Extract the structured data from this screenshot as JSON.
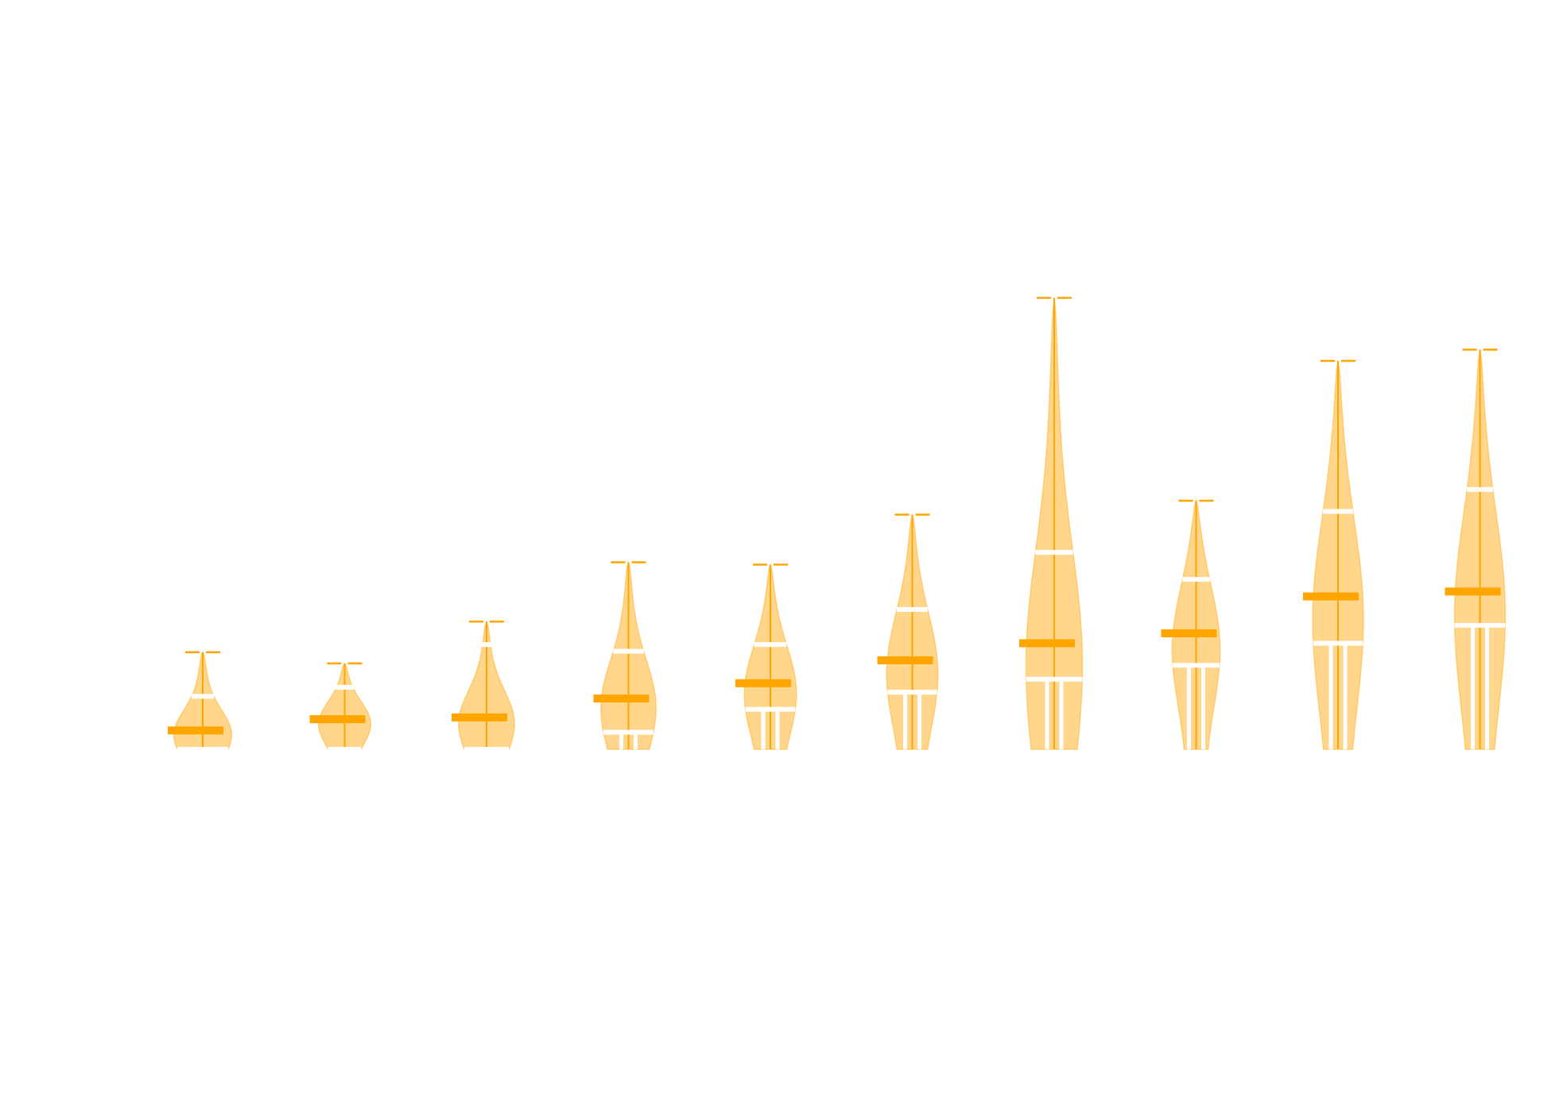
{
  "chart_data": {
    "type": "violin",
    "color": "#ffa500",
    "fill": "#ffd280",
    "box_color": "#ffffff",
    "ylim": [
      0,
      12
    ],
    "violins": [
      {
        "max": 2.16,
        "mean": 0.42,
        "q1": 0,
        "q3": 1.18
      },
      {
        "max": 1.91,
        "mean": 0.67,
        "q1": 0,
        "q3": 1.38
      },
      {
        "max": 2.84,
        "mean": 0.71,
        "q1": 0,
        "q3": 2.33
      },
      {
        "max": 4.16,
        "mean": 1.13,
        "q1": 0.38,
        "q3": 2.18
      },
      {
        "max": 4.11,
        "mean": 1.47,
        "q1": 0.89,
        "q3": 2.33
      },
      {
        "max": 5.22,
        "mean": 1.98,
        "q1": 1.27,
        "q3": 3.11
      },
      {
        "max": 10.04,
        "mean": 2.36,
        "q1": 1.56,
        "q3": 4.38
      },
      {
        "max": 5.53,
        "mean": 2.58,
        "q1": 1.87,
        "q3": 3.78
      },
      {
        "max": 8.64,
        "mean": 3.4,
        "q1": 2.36,
        "q3": 5.29
      },
      {
        "max": 8.89,
        "mean": 3.51,
        "q1": 2.76,
        "q3": 5.78
      }
    ]
  }
}
